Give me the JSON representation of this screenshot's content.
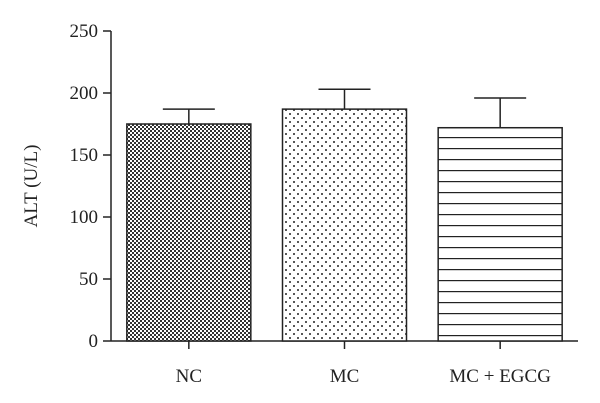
{
  "chart_data": {
    "type": "bar",
    "title": "",
    "xlabel": "",
    "ylabel": "ALT (U/L)",
    "ylim": [
      0,
      250
    ],
    "yticks": [
      0,
      50,
      100,
      150,
      200,
      250
    ],
    "categories": [
      "NC",
      "MC",
      "MC + EGCG"
    ],
    "values": [
      175,
      187,
      172
    ],
    "errors": [
      12,
      16,
      24
    ],
    "fill_patterns": [
      "crosshatch-dense",
      "dots",
      "horizontal-lines"
    ],
    "grid": false,
    "legend": "none"
  }
}
